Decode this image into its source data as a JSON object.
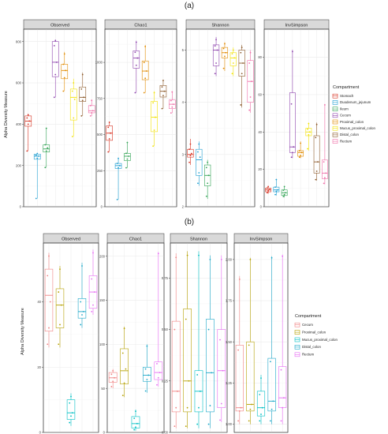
{
  "figure_labels": [
    "(a)",
    "(b)"
  ],
  "colors": {
    "strip_bg": "#d9d9d9",
    "panel_border": "#333333",
    "grid": "#ebebeb"
  },
  "chart_data": [
    {
      "type": "box",
      "panel_label": "(a)",
      "ylabel": "Alpha Diversity Measure",
      "legend_title": "Compartment",
      "legend_position": "right",
      "grid": true,
      "series": [
        {
          "name": "Stomach",
          "color": "#d7301f"
        },
        {
          "name": "Duodenum_jejunum",
          "color": "#1f9ed1"
        },
        {
          "name": "Ileum",
          "color": "#31a354"
        },
        {
          "name": "Cecum",
          "color": "#8e44ad"
        },
        {
          "name": "Proximal_colon",
          "color": "#e08a00"
        },
        {
          "name": "Mucus_proximal_colon",
          "color": "#f2e205"
        },
        {
          "name": "Distal_colon",
          "color": "#8c5a2b"
        },
        {
          "name": "Rectum",
          "color": "#f06fa8"
        }
      ],
      "facets": [
        {
          "name": "Observed",
          "ylim": [
            0,
            860
          ],
          "ticks": [
            0,
            200,
            400,
            600,
            800
          ],
          "boxes": [
            {
              "min": 270,
              "q1": 390,
              "med": 415,
              "q3": 440,
              "max": 450,
              "points": [
                270,
                400,
                415,
                430,
                445
              ]
            },
            {
              "min": 40,
              "q1": 230,
              "med": 245,
              "q3": 255,
              "max": 260,
              "points": [
                40,
                235,
                245,
                250,
                258
              ]
            },
            {
              "min": 190,
              "q1": 265,
              "med": 280,
              "q3": 300,
              "max": 380,
              "points": [
                190,
                270,
                285,
                300,
                380
              ]
            },
            {
              "min": 530,
              "q1": 630,
              "med": 700,
              "q3": 800,
              "max": 810,
              "points": [
                530,
                640,
                700,
                780,
                805
              ]
            },
            {
              "min": 560,
              "q1": 620,
              "med": 660,
              "q3": 690,
              "max": 750,
              "points": [
                560,
                625,
                660,
                690,
                740
              ]
            },
            {
              "min": 340,
              "q1": 420,
              "med": 530,
              "q3": 570,
              "max": 620,
              "points": [
                340,
                430,
                520,
                560,
                600
              ]
            },
            {
              "min": 440,
              "q1": 510,
              "med": 530,
              "q3": 580,
              "max": 650,
              "points": [
                440,
                515,
                530,
                570,
                640
              ]
            },
            {
              "min": 440,
              "q1": 455,
              "med": 465,
              "q3": 490,
              "max": 520,
              "points": [
                440,
                455,
                465,
                490,
                515
              ]
            }
          ]
        },
        {
          "name": "Chao1",
          "ylim": [
            0,
            1230
          ],
          "ticks": [
            0,
            250,
            500,
            750,
            1000,
            1250
          ],
          "boxes": [
            {
              "min": 380,
              "q1": 460,
              "med": 510,
              "q3": 560,
              "max": 590,
              "points": [
                380,
                470,
                510,
                550,
                585
              ]
            },
            {
              "min": 50,
              "q1": 265,
              "med": 285,
              "q3": 300,
              "max": 340,
              "points": [
                50,
                270,
                285,
                300,
                335
              ]
            },
            {
              "min": 270,
              "q1": 320,
              "med": 350,
              "q3": 370,
              "max": 450,
              "points": [
                270,
                330,
                350,
                370,
                445
              ]
            },
            {
              "min": 790,
              "q1": 960,
              "med": 1030,
              "q3": 1080,
              "max": 1150,
              "points": [
                790,
                980,
                1030,
                1070,
                1140
              ]
            },
            {
              "min": 790,
              "q1": 880,
              "med": 940,
              "q3": 1010,
              "max": 1120,
              "points": [
                790,
                890,
                940,
                1000,
                1110
              ]
            },
            {
              "min": 420,
              "q1": 520,
              "med": 620,
              "q3": 730,
              "max": 800,
              "points": [
                420,
                530,
                620,
                720,
                790
              ]
            },
            {
              "min": 680,
              "q1": 760,
              "med": 800,
              "q3": 840,
              "max": 880,
              "points": [
                680,
                770,
                800,
                830,
                875
              ]
            },
            {
              "min": 650,
              "q1": 680,
              "med": 710,
              "q3": 740,
              "max": 800,
              "points": [
                650,
                690,
                710,
                735,
                795
              ]
            }
          ]
        },
        {
          "name": "Shannon",
          "ylim": [
            2,
            5.4
          ],
          "ticks": [
            2,
            3,
            4,
            5
          ],
          "boxes": [
            {
              "min": 2.8,
              "q1": 2.95,
              "med": 3.0,
              "q3": 3.1,
              "max": 3.3,
              "points": [
                2.85,
                2.98,
                3.02,
                3.1,
                3.2
              ]
            },
            {
              "min": 2.4,
              "q1": 2.6,
              "med": 2.9,
              "q3": 3.1,
              "max": 3.25,
              "points": [
                2.45,
                2.65,
                2.95,
                3.05,
                3.2
              ]
            },
            {
              "min": 2.15,
              "q1": 2.4,
              "med": 2.6,
              "q3": 2.8,
              "max": 2.9,
              "points": [
                2.2,
                2.45,
                2.6,
                2.75,
                2.85
              ]
            },
            {
              "min": 4.5,
              "q1": 4.7,
              "med": 5.0,
              "q3": 5.1,
              "max": 5.25,
              "points": [
                4.55,
                4.75,
                5.0,
                5.08,
                5.2
              ]
            },
            {
              "min": 4.6,
              "q1": 4.85,
              "med": 4.95,
              "q3": 5.05,
              "max": 5.15,
              "points": [
                4.65,
                4.88,
                4.95,
                5.03,
                5.12
              ]
            },
            {
              "min": 4.5,
              "q1": 4.7,
              "med": 4.85,
              "q3": 4.95,
              "max": 5.05,
              "points": [
                4.55,
                4.75,
                4.85,
                4.93,
                5.0
              ]
            },
            {
              "min": 3.9,
              "q1": 4.5,
              "med": 4.75,
              "q3": 5.0,
              "max": 5.1,
              "points": [
                3.95,
                4.55,
                4.75,
                4.95,
                5.05
              ]
            },
            {
              "min": 3.8,
              "q1": 4.0,
              "med": 4.4,
              "q3": 4.8,
              "max": 5.0,
              "points": [
                3.85,
                4.1,
                4.4,
                4.75,
                4.95
              ]
            }
          ]
        },
        {
          "name": "InvSimpson",
          "ylim": [
            0,
            95
          ],
          "ticks": [
            0,
            20,
            40,
            60,
            80
          ],
          "boxes": [
            {
              "min": 7,
              "q1": 8,
              "med": 9,
              "q3": 10,
              "max": 11,
              "points": [
                7.5,
                8.5,
                9.2,
                10,
                10.8
              ]
            },
            {
              "min": 6,
              "q1": 8,
              "med": 9,
              "q3": 10.5,
              "max": 15,
              "points": [
                6.5,
                8.2,
                9,
                10.5,
                14.5
              ]
            },
            {
              "min": 5,
              "q1": 6,
              "med": 7.5,
              "q3": 9,
              "max": 11,
              "points": [
                5.5,
                6.5,
                7.5,
                8.8,
                10.8
              ]
            },
            {
              "min": 26,
              "q1": 29,
              "med": 32,
              "q3": 61,
              "max": 84,
              "points": [
                26.5,
                29,
                32,
                55,
                83
              ]
            },
            {
              "min": 26,
              "q1": 27,
              "med": 29,
              "q3": 30,
              "max": 35,
              "points": [
                26.5,
                27.5,
                29,
                30,
                34
              ]
            },
            {
              "min": 30,
              "q1": 38,
              "med": 40,
              "q3": 42,
              "max": 45,
              "points": [
                31,
                38.5,
                40,
                41.5,
                44.5
              ]
            },
            {
              "min": 14,
              "q1": 18,
              "med": 24,
              "q3": 38,
              "max": 45,
              "points": [
                14.5,
                19,
                24,
                37,
                44
              ]
            },
            {
              "min": 12,
              "q1": 15,
              "med": 18,
              "q3": 25,
              "max": 55,
              "points": [
                12.5,
                15.5,
                18,
                24,
                54.5
              ]
            }
          ]
        }
      ]
    },
    {
      "type": "box",
      "panel_label": "(b)",
      "ylabel": "Alpha Diversity Measure",
      "legend_title": "Compartment",
      "legend_position": "right",
      "grid": true,
      "series": [
        {
          "name": "Cecum",
          "color": "#f08080"
        },
        {
          "name": "Proximal_colon",
          "color": "#b5a000"
        },
        {
          "name": "Mucus_proximal_colon",
          "color": "#00bfc4"
        },
        {
          "name": "Distal_colon",
          "color": "#1aa7c8"
        },
        {
          "name": "Rectum",
          "color": "#e76bf3"
        }
      ],
      "facets": [
        {
          "name": "Observed",
          "ylim": [
            0,
            58
          ],
          "ticks": [
            0,
            20,
            40
          ],
          "boxes": [
            {
              "min": 26,
              "q1": 31,
              "med": 42,
              "q3": 50,
              "max": 55,
              "points": [
                27,
                32,
                40,
                48,
                54
              ]
            },
            {
              "min": 26,
              "q1": 32,
              "med": 39,
              "q3": 44,
              "max": 51,
              "points": [
                27,
                33,
                39,
                43,
                50
              ]
            },
            {
              "min": 2,
              "q1": 4,
              "med": 6,
              "q3": 10,
              "max": 12,
              "points": [
                3,
                5,
                6,
                9,
                11
              ]
            },
            {
              "min": 32,
              "q1": 35,
              "med": 37,
              "q3": 41,
              "max": 52,
              "points": [
                33,
                36,
                37,
                40,
                51
              ]
            },
            {
              "min": 36,
              "q1": 38,
              "med": 43,
              "q3": 48,
              "max": 56,
              "points": [
                37,
                39,
                43,
                47,
                55
              ]
            }
          ]
        },
        {
          "name": "Chao1",
          "ylim": [
            0,
            215
          ],
          "ticks": [
            0,
            50,
            100,
            150,
            200
          ],
          "boxes": [
            {
              "min": 50,
              "q1": 57,
              "med": 62,
              "q3": 68,
              "max": 72,
              "points": [
                52,
                58,
                62,
                66,
                70
              ]
            },
            {
              "min": 40,
              "q1": 55,
              "med": 70,
              "q3": 95,
              "max": 120,
              "points": [
                42,
                56,
                72,
                90,
                118
              ]
            },
            {
              "min": 2,
              "q1": 5,
              "med": 10,
              "q3": 18,
              "max": 26,
              "points": [
                3,
                6,
                10,
                16,
                24
              ]
            },
            {
              "min": 45,
              "q1": 58,
              "med": 65,
              "q3": 74,
              "max": 100,
              "points": [
                47,
                60,
                65,
                72,
                98
              ]
            },
            {
              "min": 52,
              "q1": 60,
              "med": 68,
              "q3": 80,
              "max": 205,
              "points": [
                54,
                62,
                68,
                78,
                203
              ]
            }
          ]
        },
        {
          "name": "Shannon",
          "ylim": [
            0,
            0.92
          ],
          "ticks": [
            0,
            0.25,
            0.5,
            0.75
          ],
          "boxes": [
            {
              "min": 0.02,
              "q1": 0.1,
              "med": 0.2,
              "q3": 0.54,
              "max": 0.87,
              "points": [
                0.03,
                0.12,
                0.2,
                0.5,
                0.85
              ]
            },
            {
              "min": 0.02,
              "q1": 0.1,
              "med": 0.25,
              "q3": 0.6,
              "max": 0.88,
              "points": [
                0.03,
                0.12,
                0.25,
                0.55,
                0.86
              ]
            },
            {
              "min": 0.02,
              "q1": 0.1,
              "med": 0.2,
              "q3": 0.3,
              "max": 0.88,
              "points": [
                0.04,
                0.12,
                0.2,
                0.28,
                0.86
              ]
            },
            {
              "min": 0.02,
              "q1": 0.1,
              "med": 0.29,
              "q3": 0.55,
              "max": 0.86,
              "points": [
                0.04,
                0.13,
                0.29,
                0.5,
                0.84
              ]
            },
            {
              "min": 0.05,
              "q1": 0.12,
              "med": 0.3,
              "q3": 0.5,
              "max": 0.86,
              "points": [
                0.06,
                0.14,
                0.3,
                0.45,
                0.84
              ]
            }
          ]
        },
        {
          "name": "InvSimpson",
          "ylim": [
            0.95,
            2.1
          ],
          "ticks": [
            1.0,
            1.25,
            1.5,
            1.75,
            2.0
          ],
          "boxes": [
            {
              "min": 1.0,
              "q1": 1.08,
              "med": 1.1,
              "q3": 1.48,
              "max": 1.9,
              "points": [
                1.02,
                1.08,
                1.1,
                1.45,
                1.88
              ]
            },
            {
              "min": 1.0,
              "q1": 1.08,
              "med": 1.12,
              "q3": 1.5,
              "max": 2.01,
              "points": [
                1.02,
                1.09,
                1.12,
                1.48,
                2.0
              ]
            },
            {
              "min": 1.0,
              "q1": 1.05,
              "med": 1.1,
              "q3": 1.2,
              "max": 1.3,
              "points": [
                1.02,
                1.06,
                1.1,
                1.18,
                1.28
              ]
            },
            {
              "min": 1.0,
              "q1": 1.08,
              "med": 1.14,
              "q3": 1.4,
              "max": 2.02,
              "points": [
                1.02,
                1.09,
                1.14,
                1.38,
                2.01
              ]
            },
            {
              "min": 1.0,
              "q1": 1.1,
              "med": 1.16,
              "q3": 1.35,
              "max": 2.03,
              "points": [
                1.02,
                1.1,
                1.16,
                1.33,
                2.02
              ]
            }
          ]
        }
      ]
    }
  ]
}
